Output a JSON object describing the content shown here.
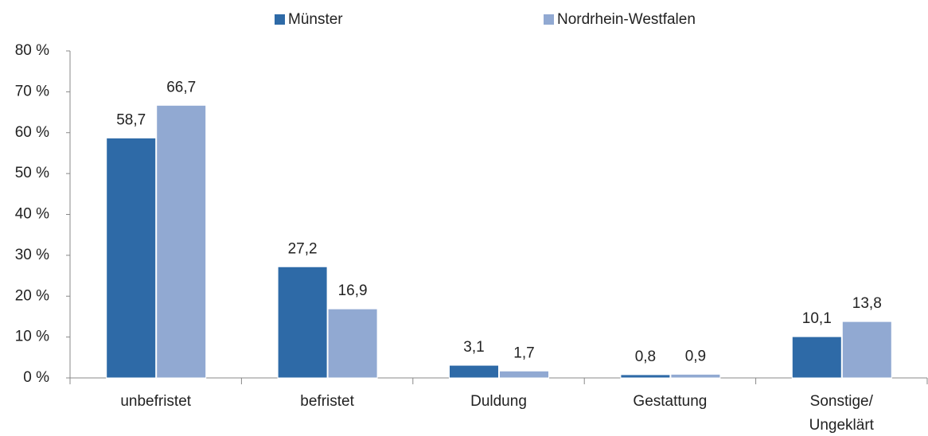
{
  "chart_data": {
    "type": "bar",
    "categories": [
      "unbefristet",
      "befristet",
      "Duldung",
      "Gestattung",
      "Sonstige/\nUngeklärt"
    ],
    "series": [
      {
        "name": "Münster",
        "color": "#2e6aa7",
        "values": [
          58.7,
          27.2,
          3.1,
          0.8,
          10.1
        ],
        "value_labels": [
          "58,7",
          "27,2",
          "3,1",
          "0,8",
          "10,1"
        ]
      },
      {
        "name": "Nordrhein-Westfalen",
        "color": "#91a9d2",
        "values": [
          66.7,
          16.9,
          1.7,
          0.9,
          13.8
        ],
        "value_labels": [
          "66,7",
          "16,9",
          "1,7",
          "0,9",
          "13,8"
        ]
      }
    ],
    "ylim": [
      0,
      80
    ],
    "yticks": [
      {
        "value": 0,
        "label": "0 %"
      },
      {
        "value": 10,
        "label": "10 %"
      },
      {
        "value": 20,
        "label": "20 %"
      },
      {
        "value": 30,
        "label": "30 %"
      },
      {
        "value": 40,
        "label": "40 %"
      },
      {
        "value": 50,
        "label": "50 %"
      },
      {
        "value": 60,
        "label": "60 %"
      },
      {
        "value": 70,
        "label": "70 %"
      },
      {
        "value": 80,
        "label": "80 %"
      }
    ],
    "grid": false,
    "legend": "top"
  }
}
